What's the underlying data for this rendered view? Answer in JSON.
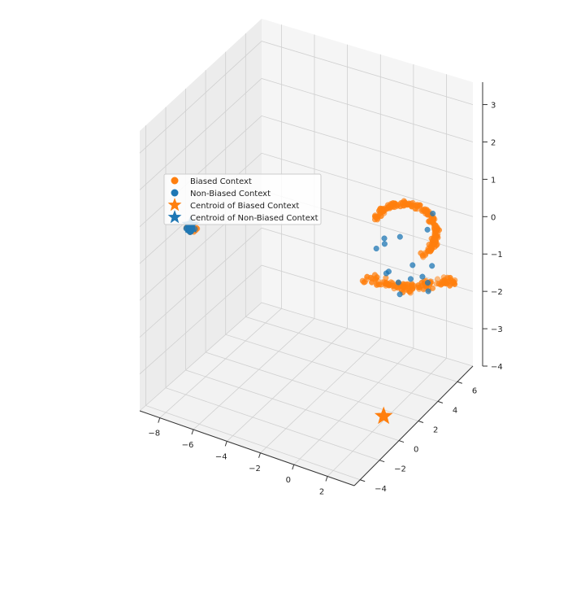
{
  "chart_data": {
    "type": "scatter",
    "projection": "3d",
    "title": "",
    "xlabel": "",
    "ylabel": "",
    "zlabel": "",
    "xlim": [
      -9.2,
      3.6
    ],
    "ylim": [
      -4.6,
      7.6
    ],
    "zlim": [
      -4,
      3.6
    ],
    "x_ticks": [
      -8,
      -6,
      -4,
      -2,
      0,
      2
    ],
    "y_ticks": [
      -4,
      -2,
      0,
      2,
      4,
      6
    ],
    "z_ticks": [
      -4,
      -3,
      -2,
      -1,
      0,
      1,
      2,
      3
    ],
    "grid": true,
    "legend": {
      "position": "upper-left",
      "entries": [
        {
          "label": "Biased Context",
          "marker": "circle",
          "color": "#ff7f0e"
        },
        {
          "label": "Non-Biased Context",
          "marker": "circle",
          "color": "#1f77b4"
        },
        {
          "label": "Centroid of Biased Context",
          "marker": "star",
          "color": "#ff7f0e"
        },
        {
          "label": "Centroid of Non-Biased Context",
          "marker": "star",
          "color": "#1f77b4"
        }
      ]
    },
    "series": [
      {
        "name": "Biased Context",
        "color": "#ff7f0e",
        "clusters": [
          {
            "center": [
              1.6,
              3.2,
              -0.3
            ],
            "count": 300,
            "shape": "curved-band"
          },
          {
            "center": [
              -8.3,
              -1.0,
              0.2
            ],
            "count": 20,
            "shape": "compact"
          }
        ]
      },
      {
        "name": "Non-Biased Context",
        "color": "#1f77b4",
        "clusters": [
          {
            "center": [
              -8.3,
              -1.0,
              0.2
            ],
            "count": 24,
            "shape": "compact"
          },
          {
            "center": [
              1.6,
              3.2,
              -0.5
            ],
            "count": 16,
            "shape": "scattered"
          }
        ]
      }
    ],
    "centroids": [
      {
        "name": "Centroid of Biased Context",
        "color": "#ff7f0e",
        "x": 1.8,
        "y": 1.5,
        "z": -4.0
      },
      {
        "name": "Centroid of Non-Biased Context",
        "color": "#1f77b4",
        "x": -8.3,
        "y": -1.0,
        "z": 0.3
      }
    ]
  }
}
